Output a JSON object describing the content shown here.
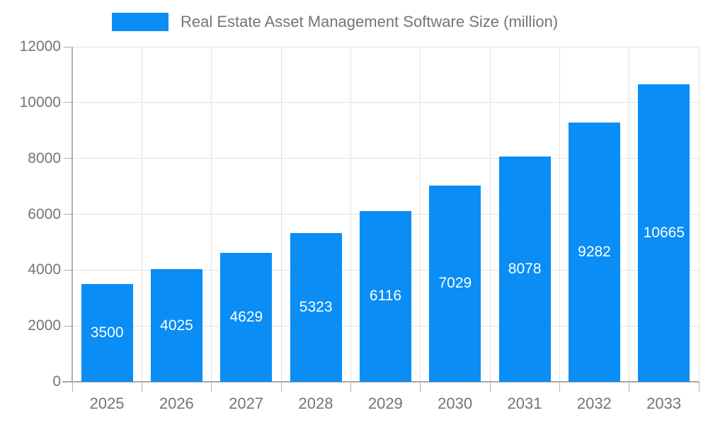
{
  "chart_data": {
    "type": "bar",
    "title": "Real Estate Asset Management Software Size (million)",
    "categories": [
      "2025",
      "2026",
      "2027",
      "2028",
      "2029",
      "2030",
      "2031",
      "2032",
      "2033"
    ],
    "values": [
      3500,
      4025,
      4629,
      5323,
      6116,
      7029,
      8078,
      9282,
      10665
    ],
    "xlabel": "",
    "ylabel": "",
    "ylim": [
      0,
      12000
    ],
    "ytick_interval": 2000,
    "grid": true,
    "legend_position": "top",
    "value_labels": "inside-center",
    "colors": {
      "bar": "#0a8df5",
      "value_label": "#ffffff",
      "axis_text": "#757575",
      "axis_line": "#a8a8a8",
      "gridline": "#e3e3e3",
      "background": "#ffffff"
    }
  }
}
